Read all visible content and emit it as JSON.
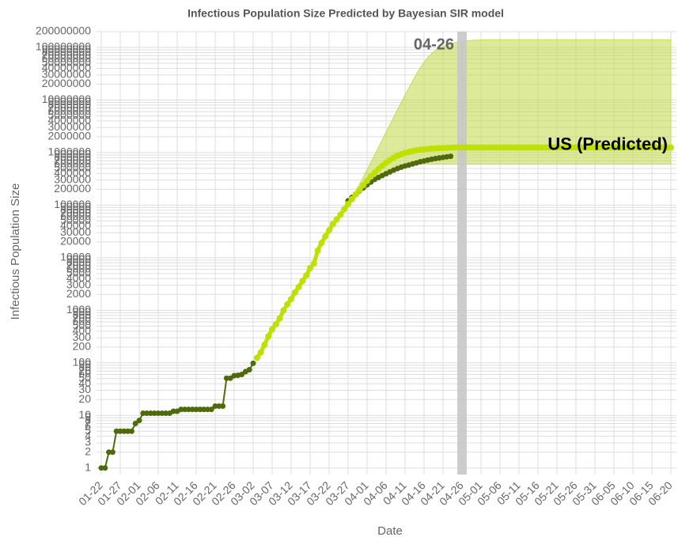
{
  "chart_data": {
    "type": "line",
    "title": "Infectious Population Size Predicted by Bayesian SIR model",
    "x_label": "Date",
    "y_label": "Infectious Population Size",
    "log_scale": true,
    "grid": true,
    "marker_label": "04-26",
    "ylim": [
      0.75,
      200000000
    ],
    "yticks": [
      1,
      2,
      3,
      4,
      5,
      6,
      7,
      8,
      9,
      10,
      20,
      30,
      40,
      50,
      60,
      70,
      80,
      90,
      100,
      200,
      300,
      400,
      500,
      600,
      700,
      800,
      900,
      1000,
      2000,
      3000,
      4000,
      5000,
      6000,
      7000,
      8000,
      9000,
      10000,
      20000,
      30000,
      40000,
      50000,
      60000,
      70000,
      80000,
      90000,
      100000,
      200000,
      300000,
      400000,
      500000,
      600000,
      700000,
      800000,
      900000,
      1000000,
      2000000,
      3000000,
      4000000,
      5000000,
      6000000,
      7000000,
      8000000,
      9000000,
      10000000,
      20000000,
      30000000,
      40000000,
      50000000,
      60000000,
      70000000,
      80000000,
      90000000,
      100000000,
      200000000
    ],
    "categories": [
      "01-22",
      null,
      null,
      null,
      null,
      "01-27",
      null,
      null,
      null,
      null,
      "02-01",
      null,
      null,
      null,
      null,
      "02-06",
      null,
      null,
      null,
      null,
      "02-11",
      null,
      null,
      null,
      null,
      "02-16",
      null,
      null,
      null,
      null,
      "02-21",
      null,
      null,
      null,
      null,
      "02-26",
      null,
      null,
      null,
      null,
      "03-02",
      null,
      null,
      null,
      null,
      "03-07",
      null,
      null,
      null,
      null,
      "03-12",
      null,
      null,
      null,
      null,
      "03-17",
      null,
      null,
      null,
      null,
      "03-22",
      null,
      null,
      null,
      null,
      "03-27",
      null,
      null,
      null,
      null,
      "04-01",
      null,
      null,
      null,
      null,
      "04-06",
      null,
      null,
      null,
      null,
      "04-11",
      null,
      null,
      null,
      null,
      "04-16",
      null,
      null,
      null,
      null,
      "04-21",
      null,
      null,
      null,
      null,
      "04-26",
      null,
      null,
      null,
      null,
      "05-01",
      null,
      null,
      null,
      null,
      "05-06",
      null,
      null,
      null,
      null,
      "05-11",
      null,
      null,
      null,
      null,
      "05-16",
      null,
      null,
      null,
      null,
      "05-21",
      null,
      null,
      null,
      null,
      "05-26",
      null,
      null,
      null,
      null,
      "05-31",
      null,
      null,
      null,
      null,
      "06-05",
      null,
      null,
      null,
      null,
      "06-10",
      null,
      null,
      null,
      null,
      "06-15",
      null,
      null,
      null,
      null,
      "06-20"
    ],
    "band": {
      "color": "#c5dc55",
      "upper": [
        null,
        null,
        null,
        null,
        null,
        null,
        null,
        null,
        null,
        null,
        null,
        null,
        null,
        null,
        null,
        null,
        null,
        null,
        null,
        null,
        null,
        null,
        null,
        null,
        null,
        null,
        null,
        null,
        null,
        null,
        null,
        null,
        null,
        null,
        null,
        null,
        null,
        null,
        null,
        null,
        null,
        null,
        null,
        null,
        null,
        null,
        null,
        null,
        null,
        null,
        null,
        null,
        null,
        null,
        null,
        null,
        null,
        null,
        null,
        null,
        null,
        null,
        null,
        null,
        null,
        110000,
        140000,
        185000,
        250000,
        340000,
        470000,
        650000,
        900000,
        1250000,
        1750000,
        2450000,
        3400000,
        4700000,
        6500000,
        9000000,
        12500000,
        17000000,
        23000000,
        31000000,
        41000000,
        52000000,
        64000000,
        76000000,
        87000000,
        97000000,
        105000000,
        112000000,
        118000000,
        123000000,
        127000000,
        130000000,
        133000000,
        135000000,
        137000000,
        138000000,
        139000000,
        140000000,
        140000000,
        140000000,
        140000000,
        140000000,
        140000000,
        140000000,
        140000000,
        140000000,
        140000000,
        140000000,
        140000000,
        140000000,
        140000000,
        140000000,
        140000000,
        140000000,
        140000000,
        140000000,
        140000000,
        140000000,
        140000000,
        140000000,
        140000000,
        140000000,
        140000000,
        140000000,
        140000000,
        140000000,
        140000000,
        140000000,
        140000000,
        140000000,
        140000000,
        140000000,
        140000000,
        140000000,
        140000000,
        140000000,
        140000000,
        140000000,
        140000000,
        140000000,
        140000000,
        140000000,
        140000000,
        140000000,
        140000000,
        140000000,
        140000000
      ],
      "lower": [
        null,
        null,
        null,
        null,
        null,
        null,
        null,
        null,
        null,
        null,
        null,
        null,
        null,
        null,
        null,
        null,
        null,
        null,
        null,
        null,
        null,
        null,
        null,
        null,
        null,
        null,
        null,
        null,
        null,
        null,
        null,
        null,
        null,
        null,
        null,
        null,
        null,
        null,
        null,
        null,
        null,
        null,
        null,
        null,
        null,
        null,
        null,
        null,
        null,
        null,
        null,
        null,
        null,
        null,
        null,
        null,
        null,
        null,
        null,
        null,
        null,
        null,
        null,
        null,
        null,
        100000,
        120000,
        140000,
        165000,
        190000,
        220000,
        255000,
        290000,
        330000,
        370000,
        410000,
        450000,
        490000,
        520000,
        550000,
        570000,
        585000,
        595000,
        600000,
        600000,
        600000,
        600000,
        600000,
        600000,
        600000,
        600000,
        600000,
        600000,
        600000,
        600000,
        600000,
        600000,
        600000,
        600000,
        600000,
        600000,
        600000,
        600000,
        600000,
        600000,
        600000,
        600000,
        600000,
        600000,
        600000,
        600000,
        600000,
        600000,
        600000,
        600000,
        600000,
        600000,
        600000,
        600000,
        600000,
        600000,
        600000,
        600000,
        600000,
        600000,
        600000,
        600000,
        600000,
        600000,
        600000,
        600000,
        600000,
        600000,
        600000,
        600000,
        600000,
        600000,
        600000,
        600000,
        600000,
        600000,
        600000,
        600000,
        600000,
        600000,
        600000,
        600000,
        600000,
        600000,
        600000,
        600000
      ]
    },
    "series": [
      {
        "color": "#4e6a0c",
        "values": [
          1,
          1,
          2,
          2,
          5,
          5,
          5,
          5,
          5,
          7,
          8,
          11,
          11,
          11,
          11,
          11,
          11,
          11,
          11,
          12,
          12,
          13,
          13,
          13,
          13,
          13,
          13,
          13,
          13,
          13,
          15,
          15,
          15,
          51,
          51,
          57,
          58,
          60,
          68,
          74,
          98,
          null,
          null,
          null,
          null,
          null,
          null,
          null,
          null,
          null,
          null,
          null,
          null,
          null,
          null,
          null,
          null,
          null,
          null,
          null,
          null,
          null,
          null,
          null,
          null,
          121000,
          140000,
          161000,
          188000,
          213000,
          243000,
          275000,
          308000,
          336000,
          366000,
          397000,
          429000,
          463000,
          497000,
          527000,
          557000,
          581000,
          608000,
          637000,
          669000,
          692000,
          720000,
          745000,
          770000,
          790000,
          810000,
          830000,
          850000,
          null,
          null,
          null,
          null,
          null,
          null,
          null,
          null,
          null,
          null,
          null,
          null,
          null,
          null,
          null,
          null,
          null,
          null,
          null,
          null,
          null,
          null,
          null,
          null,
          null,
          null,
          null,
          null,
          null,
          null,
          null,
          null,
          null,
          null,
          null,
          null,
          null,
          null,
          null,
          null,
          null,
          null,
          null,
          null,
          null,
          null,
          null,
          null,
          null,
          null,
          null,
          null,
          null,
          null,
          null,
          null,
          null,
          null
        ]
      },
      {
        "name": "US (Predicted)",
        "color": "#bfe000",
        "values": [
          null,
          null,
          null,
          null,
          null,
          null,
          null,
          null,
          null,
          null,
          null,
          null,
          null,
          null,
          null,
          null,
          null,
          null,
          null,
          null,
          null,
          null,
          null,
          null,
          null,
          null,
          null,
          null,
          null,
          null,
          null,
          null,
          null,
          null,
          null,
          null,
          null,
          null,
          null,
          null,
          null,
          124,
          158,
          221,
          319,
          435,
          541,
          704,
          994,
          1301,
          1630,
          2183,
          2770,
          3613,
          4596,
          6344,
          7750,
          13680,
          19101,
          25493,
          33276,
          43847,
          53740,
          65778,
          83836,
          105000,
          130000,
          160000,
          195000,
          240000,
          290000,
          350000,
          415000,
          485000,
          560000,
          640000,
          720000,
          800000,
          870000,
          930000,
          985000,
          1030000,
          1070000,
          1100000,
          1130000,
          1150000,
          1170000,
          1190000,
          1200000,
          1210000,
          1220000,
          1230000,
          1240000,
          1250000,
          1250000,
          1250000,
          1250000,
          1250000,
          1250000,
          1250000,
          1250000,
          1250000,
          1250000,
          1250000,
          1250000,
          1250000,
          1250000,
          1250000,
          1250000,
          1250000,
          1250000,
          1250000,
          1250000,
          1250000,
          1250000,
          1250000,
          1250000,
          1250000,
          1250000,
          1250000,
          1250000,
          1250000,
          1250000,
          1250000,
          1250000,
          1250000,
          1250000,
          1250000,
          1250000,
          1250000,
          1250000,
          1250000,
          1250000,
          1250000,
          1250000,
          1250000,
          1250000,
          1250000,
          1250000,
          1250000,
          1250000,
          1250000,
          1250000,
          1250000,
          1250000,
          1250000,
          1250000,
          1250000,
          1250000,
          1250000,
          1250000
        ]
      }
    ]
  }
}
